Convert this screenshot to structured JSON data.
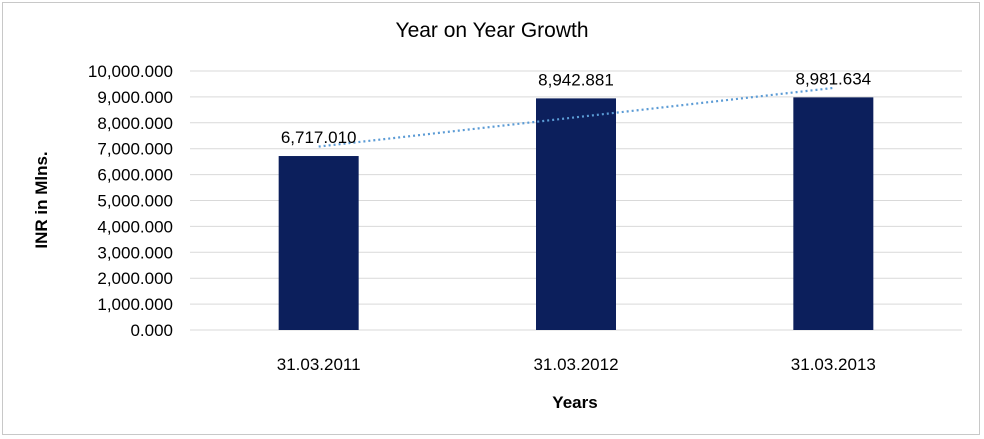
{
  "chart_data": {
    "type": "bar",
    "title": "Year on Year Growth",
    "xlabel": "Years",
    "ylabel": "INR in Mlns.",
    "categories": [
      "31.03.2011",
      "31.03.2012",
      "31.03.2013"
    ],
    "values": [
      6717.01,
      8942.881,
      8981.634
    ],
    "data_labels": [
      "6,717.010",
      "8,942.881",
      "8,981.634"
    ],
    "ylim": [
      0,
      10000
    ],
    "y_ticks": [
      "0.000",
      "1,000.000",
      "2,000.000",
      "3,000.000",
      "4,000.000",
      "5,000.000",
      "6,000.000",
      "7,000.000",
      "8,000.000",
      "9,000.000",
      "10,000.000"
    ],
    "grid": true,
    "legend": "none",
    "trendline": "linear",
    "colors": {
      "bar": "#0c1f5c",
      "trendline": "#5b9bd5",
      "grid": "#d9d9d9"
    }
  }
}
